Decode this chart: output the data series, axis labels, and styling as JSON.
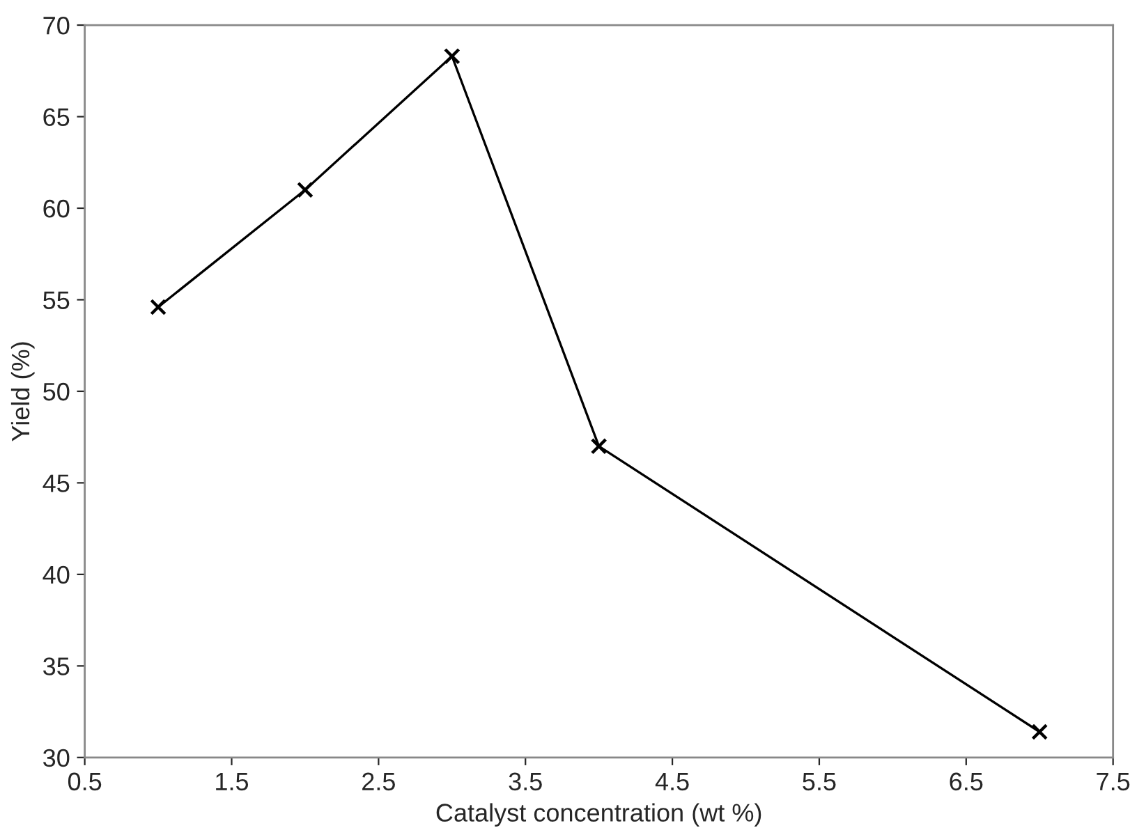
{
  "chart_data": {
    "type": "line",
    "xlabel": "Catalyst concentration (wt %)",
    "ylabel": "Yield (%)",
    "x": [
      1,
      2,
      3,
      4,
      7
    ],
    "series": [
      {
        "color": "#000000",
        "values": [
          54.6,
          61.0,
          68.3,
          47.0,
          31.4
        ]
      }
    ],
    "xlim": [
      0.5,
      7.5
    ],
    "xticks": [
      0.5,
      1.5,
      2.5,
      3.5,
      4.5,
      5.5,
      6.5,
      7.5
    ],
    "ylim": [
      30,
      70
    ],
    "yticks": [
      30,
      35,
      40,
      45,
      50,
      55,
      60,
      65,
      70
    ],
    "marker": "cross",
    "line_style": "solid",
    "grid": false,
    "legend": false
  }
}
